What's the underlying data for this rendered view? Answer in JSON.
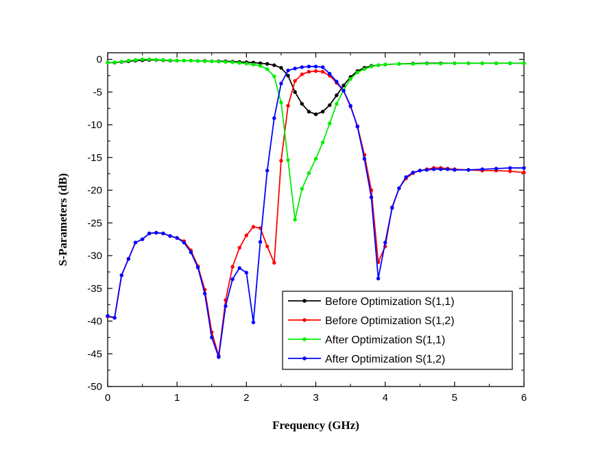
{
  "chart_data": {
    "type": "line",
    "xlabel": "Frequency (GHz)",
    "ylabel": "S-Parameters (dB)",
    "xlim": [
      0,
      6
    ],
    "ylim": [
      -50,
      1
    ],
    "xticks": [
      "0",
      "1",
      "2",
      "3",
      "4",
      "5",
      "6"
    ],
    "yticks": [
      "0",
      "-5",
      "-10",
      "-15",
      "-20",
      "-25",
      "-30",
      "-35",
      "-40",
      "-45",
      "-50"
    ],
    "grid": false,
    "legend_position": "bottom-right",
    "series": [
      {
        "name": "Before Optimization S(1,1)",
        "color": "#000000",
        "points": [
          [
            0,
            -0.5
          ],
          [
            0.1,
            -0.5
          ],
          [
            0.2,
            -0.4
          ],
          [
            0.3,
            -0.3
          ],
          [
            0.4,
            -0.2
          ],
          [
            0.5,
            -0.15
          ],
          [
            0.6,
            -0.1
          ],
          [
            0.7,
            -0.1
          ],
          [
            0.8,
            -0.15
          ],
          [
            0.9,
            -0.2
          ],
          [
            1.0,
            -0.2
          ],
          [
            1.1,
            -0.2
          ],
          [
            1.2,
            -0.2
          ],
          [
            1.3,
            -0.25
          ],
          [
            1.4,
            -0.25
          ],
          [
            1.5,
            -0.3
          ],
          [
            1.6,
            -0.3
          ],
          [
            1.7,
            -0.3
          ],
          [
            1.8,
            -0.35
          ],
          [
            1.9,
            -0.4
          ],
          [
            2.0,
            -0.45
          ],
          [
            2.1,
            -0.5
          ],
          [
            2.2,
            -0.6
          ],
          [
            2.3,
            -0.7
          ],
          [
            2.4,
            -0.9
          ],
          [
            2.5,
            -1.3
          ],
          [
            2.6,
            -2.5
          ],
          [
            2.7,
            -5.0
          ],
          [
            2.8,
            -6.8
          ],
          [
            2.9,
            -8.0
          ],
          [
            3.0,
            -8.4
          ],
          [
            3.1,
            -8.0
          ],
          [
            3.2,
            -7.0
          ],
          [
            3.3,
            -5.5
          ],
          [
            3.4,
            -4.0
          ],
          [
            3.5,
            -2.7
          ],
          [
            3.6,
            -1.8
          ],
          [
            3.7,
            -1.3
          ],
          [
            3.8,
            -1.0
          ],
          [
            3.9,
            -0.9
          ],
          [
            4.0,
            -0.8
          ],
          [
            4.2,
            -0.7
          ],
          [
            4.4,
            -0.65
          ],
          [
            4.6,
            -0.6
          ],
          [
            4.8,
            -0.6
          ],
          [
            5.0,
            -0.6
          ],
          [
            5.2,
            -0.6
          ],
          [
            5.4,
            -0.6
          ],
          [
            5.6,
            -0.6
          ],
          [
            5.8,
            -0.6
          ],
          [
            6.0,
            -0.6
          ]
        ]
      },
      {
        "name": "Before Optimization S(1,2)",
        "color": "#ff0000",
        "points": [
          [
            0,
            -39.3
          ],
          [
            0.1,
            -39.5
          ],
          [
            0.2,
            -33.0
          ],
          [
            0.3,
            -30.5
          ],
          [
            0.4,
            -28.0
          ],
          [
            0.5,
            -27.5
          ],
          [
            0.6,
            -26.6
          ],
          [
            0.7,
            -26.5
          ],
          [
            0.8,
            -26.6
          ],
          [
            0.9,
            -27.0
          ],
          [
            1.0,
            -27.3
          ],
          [
            1.1,
            -27.8
          ],
          [
            1.2,
            -29.2
          ],
          [
            1.3,
            -31.6
          ],
          [
            1.4,
            -35.2
          ],
          [
            1.5,
            -41.7
          ],
          [
            1.6,
            -45.3
          ],
          [
            1.7,
            -36.8
          ],
          [
            1.8,
            -31.7
          ],
          [
            1.9,
            -28.8
          ],
          [
            2.0,
            -26.9
          ],
          [
            2.1,
            -25.6
          ],
          [
            2.2,
            -25.8
          ],
          [
            2.3,
            -28.6
          ],
          [
            2.4,
            -31.1
          ],
          [
            2.5,
            -15.5
          ],
          [
            2.6,
            -7.1
          ],
          [
            2.7,
            -3.3
          ],
          [
            2.8,
            -2.3
          ],
          [
            2.9,
            -1.9
          ],
          [
            3.0,
            -1.8
          ],
          [
            3.1,
            -1.9
          ],
          [
            3.2,
            -2.5
          ],
          [
            3.3,
            -3.6
          ],
          [
            3.4,
            -4.8
          ],
          [
            3.5,
            -7.2
          ],
          [
            3.6,
            -10.2
          ],
          [
            3.7,
            -14.6
          ],
          [
            3.8,
            -20.0
          ],
          [
            3.9,
            -31.0
          ],
          [
            4.0,
            -28.6
          ],
          [
            4.1,
            -22.6
          ],
          [
            4.2,
            -19.7
          ],
          [
            4.3,
            -18.2
          ],
          [
            4.4,
            -17.4
          ],
          [
            4.5,
            -17.0
          ],
          [
            4.6,
            -16.8
          ],
          [
            4.7,
            -16.6
          ],
          [
            4.8,
            -16.6
          ],
          [
            4.9,
            -16.7
          ],
          [
            5.0,
            -16.8
          ],
          [
            5.2,
            -16.9
          ],
          [
            5.4,
            -17.0
          ],
          [
            5.6,
            -17.0
          ],
          [
            5.8,
            -17.1
          ],
          [
            6.0,
            -17.3
          ]
        ]
      },
      {
        "name": "After Optimization S(1,1)",
        "color": "#00ee00",
        "points": [
          [
            0,
            -0.5
          ],
          [
            0.1,
            -0.45
          ],
          [
            0.2,
            -0.35
          ],
          [
            0.3,
            -0.2
          ],
          [
            0.4,
            -0.1
          ],
          [
            0.5,
            0.0
          ],
          [
            0.6,
            0.0
          ],
          [
            0.7,
            -0.05
          ],
          [
            0.8,
            -0.1
          ],
          [
            0.9,
            -0.15
          ],
          [
            1.0,
            -0.2
          ],
          [
            1.1,
            -0.2
          ],
          [
            1.2,
            -0.2
          ],
          [
            1.3,
            -0.25
          ],
          [
            1.4,
            -0.3
          ],
          [
            1.5,
            -0.3
          ],
          [
            1.6,
            -0.35
          ],
          [
            1.7,
            -0.4
          ],
          [
            1.8,
            -0.45
          ],
          [
            1.9,
            -0.55
          ],
          [
            2.0,
            -0.65
          ],
          [
            2.1,
            -0.8
          ],
          [
            2.2,
            -1.0
          ],
          [
            2.3,
            -1.5
          ],
          [
            2.4,
            -2.6
          ],
          [
            2.5,
            -6.6
          ],
          [
            2.6,
            -15.4
          ],
          [
            2.7,
            -24.5
          ],
          [
            2.8,
            -19.8
          ],
          [
            2.9,
            -17.4
          ],
          [
            3.0,
            -15.2
          ],
          [
            3.1,
            -12.7
          ],
          [
            3.2,
            -9.8
          ],
          [
            3.3,
            -6.8
          ],
          [
            3.4,
            -4.7
          ],
          [
            3.5,
            -3.0
          ],
          [
            3.6,
            -2.0
          ],
          [
            3.7,
            -1.5
          ],
          [
            3.8,
            -1.1
          ],
          [
            3.9,
            -0.9
          ],
          [
            4.0,
            -0.8
          ],
          [
            4.2,
            -0.7
          ],
          [
            4.4,
            -0.7
          ],
          [
            4.6,
            -0.65
          ],
          [
            4.8,
            -0.65
          ],
          [
            5.0,
            -0.6
          ],
          [
            5.2,
            -0.6
          ],
          [
            5.4,
            -0.6
          ],
          [
            5.6,
            -0.6
          ],
          [
            5.8,
            -0.6
          ],
          [
            6.0,
            -0.6
          ]
        ]
      },
      {
        "name": "After Optimization S(1,2)",
        "color": "#0000ff",
        "points": [
          [
            0,
            -39.2
          ],
          [
            0.1,
            -39.5
          ],
          [
            0.2,
            -33.0
          ],
          [
            0.3,
            -30.5
          ],
          [
            0.4,
            -28.0
          ],
          [
            0.5,
            -27.5
          ],
          [
            0.6,
            -26.6
          ],
          [
            0.7,
            -26.5
          ],
          [
            0.8,
            -26.6
          ],
          [
            0.9,
            -27.0
          ],
          [
            1.0,
            -27.3
          ],
          [
            1.1,
            -28.0
          ],
          [
            1.2,
            -29.5
          ],
          [
            1.3,
            -31.8
          ],
          [
            1.4,
            -35.8
          ],
          [
            1.5,
            -42.5
          ],
          [
            1.6,
            -45.5
          ],
          [
            1.7,
            -37.7
          ],
          [
            1.8,
            -33.6
          ],
          [
            1.9,
            -31.9
          ],
          [
            2.0,
            -32.6
          ],
          [
            2.1,
            -40.2
          ],
          [
            2.2,
            -27.9
          ],
          [
            2.3,
            -17.0
          ],
          [
            2.4,
            -9.0
          ],
          [
            2.5,
            -3.7
          ],
          [
            2.6,
            -1.7
          ],
          [
            2.7,
            -1.4
          ],
          [
            2.8,
            -1.2
          ],
          [
            2.9,
            -1.1
          ],
          [
            3.0,
            -1.1
          ],
          [
            3.1,
            -1.2
          ],
          [
            3.2,
            -2.2
          ],
          [
            3.3,
            -3.4
          ],
          [
            3.4,
            -4.8
          ],
          [
            3.5,
            -7.1
          ],
          [
            3.6,
            -10.3
          ],
          [
            3.7,
            -15.2
          ],
          [
            3.8,
            -21.1
          ],
          [
            3.9,
            -33.5
          ],
          [
            4.0,
            -28.0
          ],
          [
            4.1,
            -22.7
          ],
          [
            4.2,
            -19.7
          ],
          [
            4.3,
            -18.0
          ],
          [
            4.4,
            -17.3
          ],
          [
            4.5,
            -17.0
          ],
          [
            4.6,
            -16.9
          ],
          [
            4.7,
            -16.8
          ],
          [
            4.8,
            -16.8
          ],
          [
            4.9,
            -16.8
          ],
          [
            5.0,
            -16.9
          ],
          [
            5.2,
            -16.9
          ],
          [
            5.4,
            -16.8
          ],
          [
            5.6,
            -16.7
          ],
          [
            5.8,
            -16.6
          ],
          [
            6.0,
            -16.6
          ]
        ]
      }
    ]
  }
}
